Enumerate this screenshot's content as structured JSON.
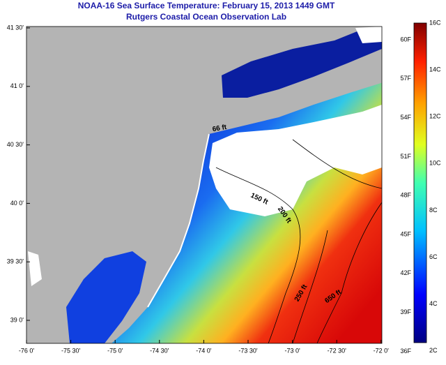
{
  "header": {
    "title": "NOAA-16 Sea Surface Temperature:  February 15, 2013 1449 GMT",
    "subtitle": "Rutgers Coastal Ocean Observation Lab"
  },
  "map": {
    "lat_labels": [
      "41 30'",
      "41 0'",
      "40 30'",
      "40 0'",
      "39 30'",
      "39 0'"
    ],
    "lon_labels": [
      "-76 0'",
      "-75 30'",
      "-75 0'",
      "-74 30'",
      "-74 0'",
      "-73 30'",
      "-73 0'",
      "-72 30'",
      "-72 0'"
    ],
    "contour_labels": [
      "66 ft",
      "150 ft",
      "200 ft",
      "250 ft",
      "650 ft"
    ]
  },
  "colorbar": {
    "fahrenheit_labels": [
      "60F",
      "57F",
      "54F",
      "51F",
      "48F",
      "45F",
      "42F",
      "39F",
      "36F"
    ],
    "celsius_labels": [
      "16C",
      "14C",
      "12C",
      "10C",
      "8C",
      "6C",
      "4C",
      "2C"
    ]
  }
}
